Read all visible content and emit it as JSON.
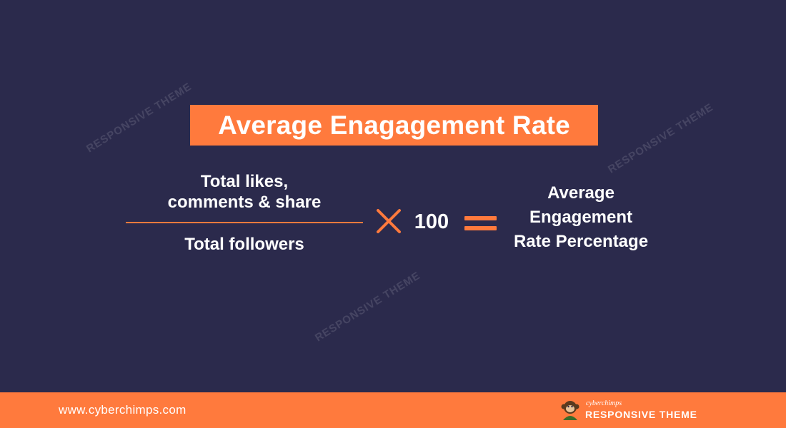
{
  "title": "Average Enagagement Rate",
  "formula": {
    "numerator_line1": "Total likes,",
    "numerator_line2": "comments & share",
    "denominator": "Total followers",
    "multiplier": "100",
    "result_line1": "Average",
    "result_line2": "Engagement",
    "result_line3": "Rate Percentage"
  },
  "watermark": {
    "brand_small": "cyberchimps",
    "brand_big": "RESPONSIVE THEME"
  },
  "footer": {
    "url": "www.cyberchimps.com",
    "logo_small": "cyberchimps",
    "logo_big": "RESPONSIVE THEME"
  },
  "icons": {
    "operator_times": "times-icon",
    "operator_equals": "equals-icon",
    "logo": "monkey-logo-icon"
  },
  "colors": {
    "background": "#2b2a4c",
    "accent": "#ff7a3d",
    "text": "#ffffff"
  }
}
